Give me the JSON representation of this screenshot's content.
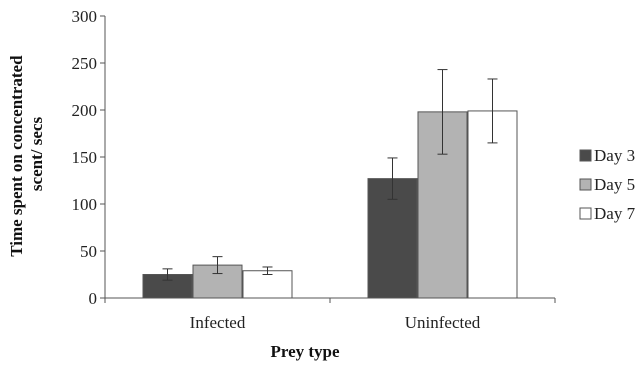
{
  "chart_data": {
    "type": "bar",
    "categories": [
      "Infected",
      "Uninfected"
    ],
    "series": [
      {
        "name": "Day 3",
        "color": "#4a4a4a",
        "values": [
          25,
          127
        ],
        "errors": [
          6,
          22
        ]
      },
      {
        "name": "Day 5",
        "color": "#b3b3b3",
        "values": [
          35,
          198
        ],
        "errors": [
          9,
          45
        ]
      },
      {
        "name": "Day 7",
        "color": "#ffffff",
        "values": [
          29,
          199
        ],
        "errors": [
          4,
          34
        ]
      }
    ],
    "xlabel": "Prey type",
    "ylabel": "Time spent on concentrated scent/ secs",
    "ylabel_lines": [
      "Time spent on concentrated",
      "scent/ secs"
    ],
    "yticks": [
      0,
      50,
      100,
      150,
      200,
      250,
      300
    ],
    "ylim": [
      0,
      300
    ],
    "grid": false,
    "legend_position": "right"
  }
}
